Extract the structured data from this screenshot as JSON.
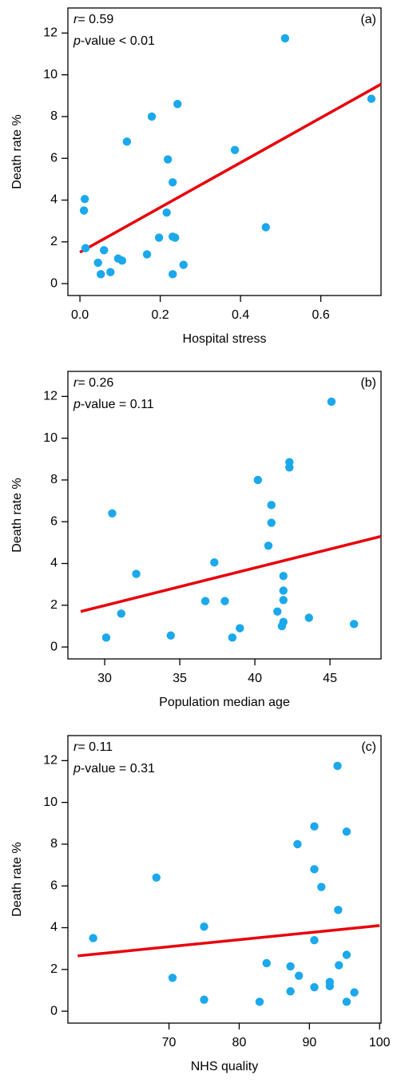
{
  "chart_data": [
    {
      "type": "scatter",
      "panel_label": "(a)",
      "xlabel": "Hospital stress",
      "ylabel": "Death rate %",
      "annotations": [
        {
          "italic": "r",
          "rest": "= 0.59"
        },
        {
          "italic": "p",
          "rest": "-value < 0.01"
        }
      ],
      "color": "#1ba8ec",
      "x": [
        0.012,
        0.01,
        0.014,
        0.045,
        0.052,
        0.06,
        0.076,
        0.095,
        0.105,
        0.117,
        0.167,
        0.179,
        0.197,
        0.216,
        0.219,
        0.231,
        0.231,
        0.237,
        0.231,
        0.243,
        0.258,
        0.386,
        0.463,
        0.511,
        0.726
      ],
      "y": [
        4.05,
        3.5,
        1.7,
        1.0,
        0.45,
        1.6,
        0.55,
        1.2,
        1.1,
        6.8,
        1.4,
        8.0,
        2.2,
        3.4,
        5.95,
        4.85,
        2.25,
        2.2,
        0.45,
        8.6,
        0.9,
        6.4,
        2.7,
        11.75,
        8.85
      ],
      "fit": {
        "color": "#e8000b",
        "x": [
          0.0,
          0.75
        ],
        "y": [
          1.5,
          9.55
        ]
      },
      "xlim": [
        -0.03,
        0.75
      ],
      "ylim": [
        -0.57,
        13.2
      ],
      "xticks": [
        {
          "value": 0,
          "label": "0.0"
        },
        0.2,
        0.4,
        0.6
      ],
      "yticks": [
        0,
        2,
        4,
        6,
        8,
        10,
        12
      ]
    },
    {
      "type": "scatter",
      "panel_label": "(b)",
      "xlabel": "Population median age",
      "ylabel": "Death rate %",
      "annotations": [
        {
          "italic": "r",
          "rest": "= 0.26"
        },
        {
          "italic": "p",
          "rest": "-value = 0.11"
        }
      ],
      "color": "#1ba8ec",
      "x": [
        30.1,
        30.5,
        32.1,
        31.1,
        34.4,
        37.3,
        36.7,
        38.0,
        38.5,
        39.0,
        40.2,
        40.9,
        41.1,
        41.1,
        41.5,
        41.8,
        41.9,
        41.9,
        41.9,
        41.9,
        42.3,
        42.3,
        43.6,
        45.1,
        46.6
      ],
      "y": [
        0.45,
        6.4,
        3.5,
        1.6,
        0.55,
        4.05,
        2.2,
        2.2,
        0.45,
        0.9,
        8.0,
        4.85,
        6.8,
        5.95,
        1.7,
        1.0,
        3.4,
        2.7,
        2.25,
        1.2,
        8.6,
        8.85,
        1.4,
        11.75,
        1.1
      ],
      "fit": {
        "color": "#e8000b",
        "x": [
          28.4,
          48.4
        ],
        "y": [
          1.7,
          5.3
        ]
      },
      "xlim": [
        27.55,
        48.4
      ],
      "ylim": [
        -0.57,
        13.2
      ],
      "xticks": [
        30,
        35,
        40,
        45
      ],
      "yticks": [
        0,
        2,
        4,
        6,
        8,
        10,
        12
      ]
    },
    {
      "type": "scatter",
      "panel_label": "(c)",
      "xlabel": "NHS quality",
      "ylabel": "Death rate %",
      "annotations": [
        {
          "italic": "r",
          "rest": "= 0.11"
        },
        {
          "italic": "p",
          "rest": "-value = 0.31"
        }
      ],
      "color": "#1ba8ec",
      "x": [
        59.2,
        68.2,
        70.5,
        75.0,
        75.0,
        82.9,
        83.9,
        87.3,
        87.3,
        88.3,
        88.5,
        90.7,
        90.7,
        90.7,
        90.7,
        91.7,
        92.9,
        92.9,
        94.0,
        94.1,
        94.2,
        95.3,
        95.3,
        95.3,
        96.4
      ],
      "y": [
        3.5,
        6.4,
        1.6,
        4.05,
        0.55,
        0.45,
        2.3,
        2.15,
        0.95,
        8.0,
        1.7,
        8.85,
        6.8,
        3.4,
        1.15,
        5.95,
        1.4,
        1.2,
        11.75,
        4.85,
        2.2,
        2.7,
        8.6,
        0.45,
        0.9
      ],
      "fit": {
        "color": "#e8000b",
        "x": [
          57.0,
          100.0
        ],
        "y": [
          2.65,
          4.1
        ]
      },
      "xlim": [
        55.6,
        100.2
      ],
      "ylim": [
        -0.57,
        13.2
      ],
      "xticks": [
        70,
        80,
        90,
        100
      ],
      "yticks": [
        0,
        2,
        4,
        6,
        8,
        10,
        12
      ]
    }
  ]
}
